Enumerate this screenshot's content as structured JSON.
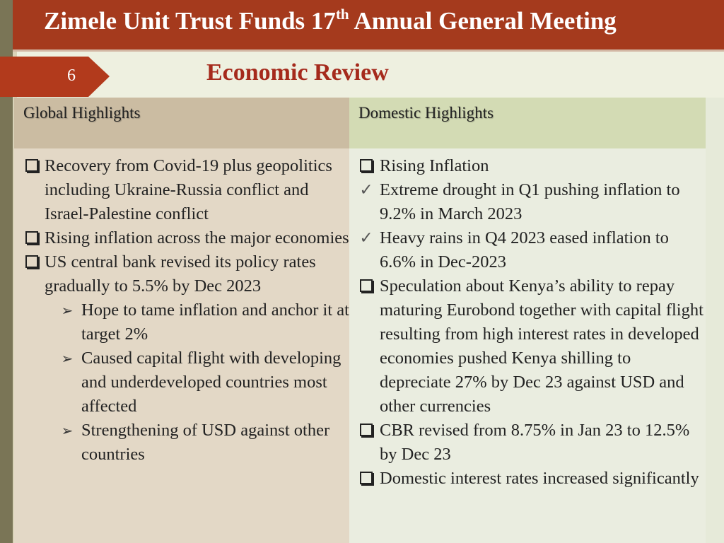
{
  "header": {
    "title_prefix": "Zimele Unit Trust Funds 17",
    "title_sup": "th",
    "title_suffix": " Annual General Meeting"
  },
  "slide_number": "6",
  "section_title": "Economic Review",
  "left_column": {
    "heading": "Global Highlights",
    "items": [
      {
        "marker": "box",
        "text": "Recovery from Covid-19 plus geopolitics including Ukraine-Russia conflict and Israel-Palestine conflict"
      },
      {
        "marker": "box",
        "text": "Rising inflation across the major economies"
      },
      {
        "marker": "box",
        "text": "US central bank revised its policy rates gradually to 5.5% by Dec 2023"
      },
      {
        "marker": "arrow",
        "text": "Hope to tame inflation and anchor it at target 2%"
      },
      {
        "marker": "arrow",
        "text": "Caused capital flight with developing and underdeveloped countries most affected"
      },
      {
        "marker": "arrow",
        "text": "Strengthening of USD against other countries"
      }
    ]
  },
  "right_column": {
    "heading": "Domestic Highlights",
    "items": [
      {
        "marker": "box",
        "text": "Rising Inflation"
      },
      {
        "marker": "check",
        "text": "Extreme drought in Q1 pushing inflation to 9.2% in March 2023"
      },
      {
        "marker": "check",
        "text": "Heavy rains in Q4 2023 eased inflation to 6.6% in Dec-2023"
      },
      {
        "marker": "box",
        "text": "Speculation about Kenya’s ability to repay maturing Eurobond together with capital flight resulting from high interest rates in developed economies pushed Kenya shilling to depreciate 27% by Dec 23 against USD and other currencies"
      },
      {
        "marker": "box",
        "text": "CBR revised from 8.75% in Jan 23 to 12.5% by Dec 23"
      },
      {
        "marker": "box",
        "text": "Domestic interest rates increased significantly"
      }
    ]
  }
}
